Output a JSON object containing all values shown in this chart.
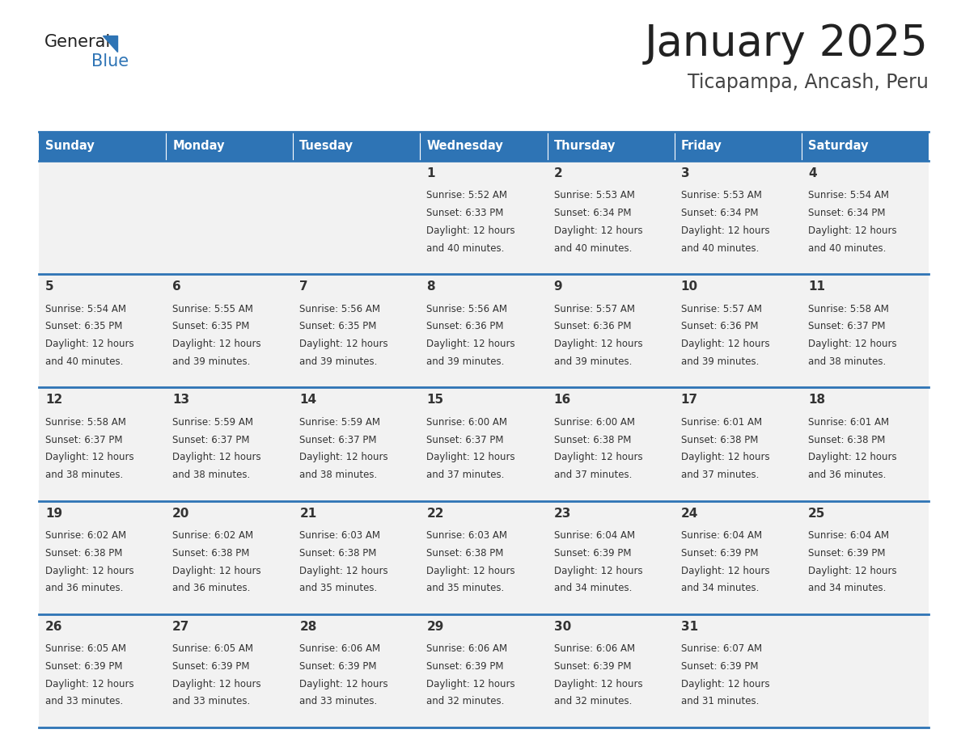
{
  "title": "January 2025",
  "subtitle": "Ticapampa, Ancash, Peru",
  "days_of_week": [
    "Sunday",
    "Monday",
    "Tuesday",
    "Wednesday",
    "Thursday",
    "Friday",
    "Saturday"
  ],
  "header_bg": "#2E74B5",
  "header_text": "#FFFFFF",
  "cell_bg": "#F2F2F2",
  "cell_text": "#333333",
  "grid_line_color": "#2E74B5",
  "title_color": "#222222",
  "subtitle_color": "#444444",
  "logo_general_color": "#222222",
  "logo_blue_color": "#2E74B5",
  "calendar_data": [
    [
      null,
      null,
      null,
      {
        "day": 1,
        "sunrise": "5:52 AM",
        "sunset": "6:33 PM",
        "daylight_hours": 12,
        "daylight_minutes": 40
      },
      {
        "day": 2,
        "sunrise": "5:53 AM",
        "sunset": "6:34 PM",
        "daylight_hours": 12,
        "daylight_minutes": 40
      },
      {
        "day": 3,
        "sunrise": "5:53 AM",
        "sunset": "6:34 PM",
        "daylight_hours": 12,
        "daylight_minutes": 40
      },
      {
        "day": 4,
        "sunrise": "5:54 AM",
        "sunset": "6:34 PM",
        "daylight_hours": 12,
        "daylight_minutes": 40
      }
    ],
    [
      {
        "day": 5,
        "sunrise": "5:54 AM",
        "sunset": "6:35 PM",
        "daylight_hours": 12,
        "daylight_minutes": 40
      },
      {
        "day": 6,
        "sunrise": "5:55 AM",
        "sunset": "6:35 PM",
        "daylight_hours": 12,
        "daylight_minutes": 39
      },
      {
        "day": 7,
        "sunrise": "5:56 AM",
        "sunset": "6:35 PM",
        "daylight_hours": 12,
        "daylight_minutes": 39
      },
      {
        "day": 8,
        "sunrise": "5:56 AM",
        "sunset": "6:36 PM",
        "daylight_hours": 12,
        "daylight_minutes": 39
      },
      {
        "day": 9,
        "sunrise": "5:57 AM",
        "sunset": "6:36 PM",
        "daylight_hours": 12,
        "daylight_minutes": 39
      },
      {
        "day": 10,
        "sunrise": "5:57 AM",
        "sunset": "6:36 PM",
        "daylight_hours": 12,
        "daylight_minutes": 39
      },
      {
        "day": 11,
        "sunrise": "5:58 AM",
        "sunset": "6:37 PM",
        "daylight_hours": 12,
        "daylight_minutes": 38
      }
    ],
    [
      {
        "day": 12,
        "sunrise": "5:58 AM",
        "sunset": "6:37 PM",
        "daylight_hours": 12,
        "daylight_minutes": 38
      },
      {
        "day": 13,
        "sunrise": "5:59 AM",
        "sunset": "6:37 PM",
        "daylight_hours": 12,
        "daylight_minutes": 38
      },
      {
        "day": 14,
        "sunrise": "5:59 AM",
        "sunset": "6:37 PM",
        "daylight_hours": 12,
        "daylight_minutes": 38
      },
      {
        "day": 15,
        "sunrise": "6:00 AM",
        "sunset": "6:37 PM",
        "daylight_hours": 12,
        "daylight_minutes": 37
      },
      {
        "day": 16,
        "sunrise": "6:00 AM",
        "sunset": "6:38 PM",
        "daylight_hours": 12,
        "daylight_minutes": 37
      },
      {
        "day": 17,
        "sunrise": "6:01 AM",
        "sunset": "6:38 PM",
        "daylight_hours": 12,
        "daylight_minutes": 37
      },
      {
        "day": 18,
        "sunrise": "6:01 AM",
        "sunset": "6:38 PM",
        "daylight_hours": 12,
        "daylight_minutes": 36
      }
    ],
    [
      {
        "day": 19,
        "sunrise": "6:02 AM",
        "sunset": "6:38 PM",
        "daylight_hours": 12,
        "daylight_minutes": 36
      },
      {
        "day": 20,
        "sunrise": "6:02 AM",
        "sunset": "6:38 PM",
        "daylight_hours": 12,
        "daylight_minutes": 36
      },
      {
        "day": 21,
        "sunrise": "6:03 AM",
        "sunset": "6:38 PM",
        "daylight_hours": 12,
        "daylight_minutes": 35
      },
      {
        "day": 22,
        "sunrise": "6:03 AM",
        "sunset": "6:38 PM",
        "daylight_hours": 12,
        "daylight_minutes": 35
      },
      {
        "day": 23,
        "sunrise": "6:04 AM",
        "sunset": "6:39 PM",
        "daylight_hours": 12,
        "daylight_minutes": 34
      },
      {
        "day": 24,
        "sunrise": "6:04 AM",
        "sunset": "6:39 PM",
        "daylight_hours": 12,
        "daylight_minutes": 34
      },
      {
        "day": 25,
        "sunrise": "6:04 AM",
        "sunset": "6:39 PM",
        "daylight_hours": 12,
        "daylight_minutes": 34
      }
    ],
    [
      {
        "day": 26,
        "sunrise": "6:05 AM",
        "sunset": "6:39 PM",
        "daylight_hours": 12,
        "daylight_minutes": 33
      },
      {
        "day": 27,
        "sunrise": "6:05 AM",
        "sunset": "6:39 PM",
        "daylight_hours": 12,
        "daylight_minutes": 33
      },
      {
        "day": 28,
        "sunrise": "6:06 AM",
        "sunset": "6:39 PM",
        "daylight_hours": 12,
        "daylight_minutes": 33
      },
      {
        "day": 29,
        "sunrise": "6:06 AM",
        "sunset": "6:39 PM",
        "daylight_hours": 12,
        "daylight_minutes": 32
      },
      {
        "day": 30,
        "sunrise": "6:06 AM",
        "sunset": "6:39 PM",
        "daylight_hours": 12,
        "daylight_minutes": 32
      },
      {
        "day": 31,
        "sunrise": "6:07 AM",
        "sunset": "6:39 PM",
        "daylight_hours": 12,
        "daylight_minutes": 31
      },
      null
    ]
  ]
}
